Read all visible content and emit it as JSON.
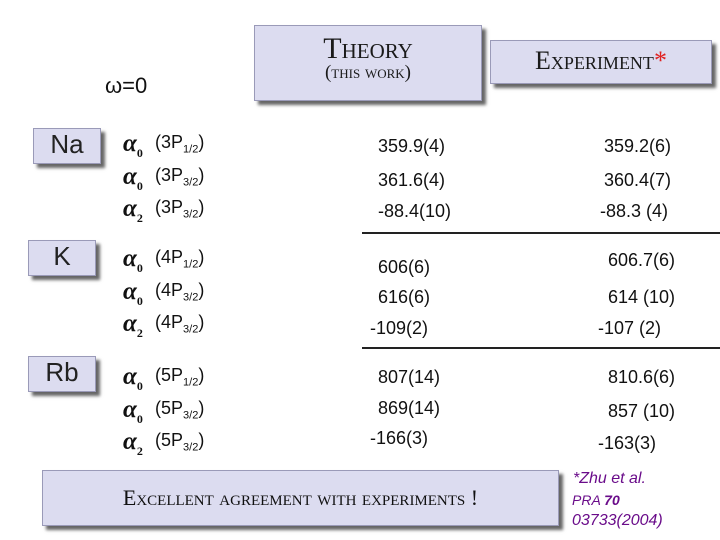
{
  "header": {
    "omega": "ω=0",
    "theory_title": "Theory",
    "theory_sub": "(this work)",
    "experiment_title": "Experiment",
    "experiment_star": "*"
  },
  "groups": [
    {
      "element": "Na",
      "rows": [
        {
          "alpha_index": "0",
          "state_base": "(3P",
          "state_sub": "1/2",
          "state_close": ")",
          "theory": "359.9(4)",
          "experiment": "359.2(6)"
        },
        {
          "alpha_index": "0",
          "state_base": "(3P",
          "state_sub": "3/2",
          "state_close": ")",
          "theory": "361.6(4)",
          "experiment": "360.4(7)"
        },
        {
          "alpha_index": "2",
          "state_base": "(3P",
          "state_sub": "3/2",
          "state_close": ")",
          "theory": "-88.4(10)",
          "experiment": "-88.3 (4)"
        }
      ]
    },
    {
      "element": "K",
      "rows": [
        {
          "alpha_index": "0",
          "state_base": "(4P",
          "state_sub": "1/2",
          "state_close": ")",
          "theory": "606(6)",
          "experiment": "606.7(6)"
        },
        {
          "alpha_index": "0",
          "state_base": "(4P",
          "state_sub": "3/2",
          "state_close": ")",
          "theory": "616(6)",
          "experiment": "614 (10)"
        },
        {
          "alpha_index": "2",
          "state_base": "(4P",
          "state_sub": "3/2",
          "state_close": ")",
          "theory": "-109(2)",
          "experiment": "-107 (2)"
        }
      ]
    },
    {
      "element": "Rb",
      "rows": [
        {
          "alpha_index": "0",
          "state_base": "(5P",
          "state_sub": "1/2",
          "state_close": ")",
          "theory": "807(14)",
          "experiment": "810.6(6)"
        },
        {
          "alpha_index": "0",
          "state_base": "(5P",
          "state_sub": "3/2",
          "state_close": ")",
          "theory": "869(14)",
          "experiment": "857 (10)"
        },
        {
          "alpha_index": "2",
          "state_base": "(5P",
          "state_sub": "3/2",
          "state_close": ")",
          "theory": "-166(3)",
          "experiment": "-163(3)"
        }
      ]
    }
  ],
  "footer": {
    "conclusion": "Excellent agreement with experiments !",
    "ref_line1": "*Zhu et al.",
    "ref_journal": "PRA",
    "ref_volume": "70",
    "ref_line3": "03733(2004)"
  },
  "colors": {
    "box_fill": "#dcdcf0",
    "star": "#e02020",
    "reference": "#6a0c8a"
  }
}
